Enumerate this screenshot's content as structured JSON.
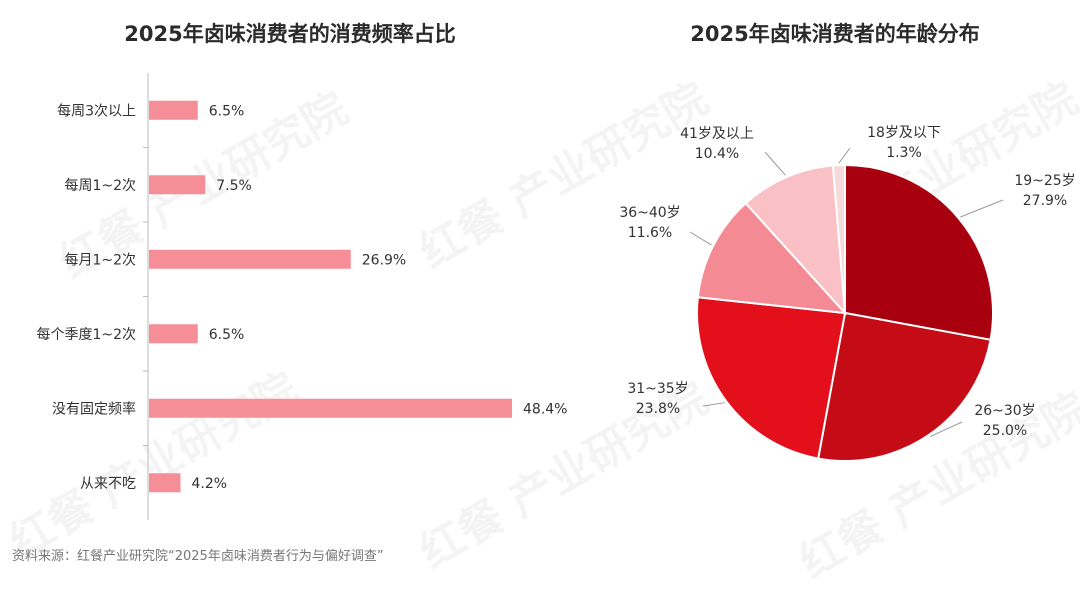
{
  "colors": {
    "bar": "#f58e97",
    "pie": [
      "#a8000e",
      "#c50b16",
      "#e3101c",
      "#f48b94",
      "#f9c1c6",
      "#f6d9db"
    ],
    "axis": "#bbbbbb",
    "leader": "#999999"
  },
  "source": "资料来源：红餐产业研究院“2025年卤味消费者行为与偏好调查”",
  "watermark": "红餐 产业研究院",
  "chart_data": [
    {
      "type": "bar",
      "orientation": "horizontal",
      "title": "2025年卤味消费者的消费频率占比",
      "categories": [
        "每周3次以上",
        "每周1~2次",
        "每月1~2次",
        "每个季度1~2次",
        "没有固定频率",
        "从来不吃"
      ],
      "values": [
        6.5,
        7.5,
        26.9,
        6.5,
        48.4,
        4.2
      ],
      "value_labels": [
        "6.5%",
        "7.5%",
        "26.9%",
        "6.5%",
        "48.4%",
        "4.2%"
      ],
      "unit": "%",
      "xlim": [
        0,
        50
      ],
      "grid": false
    },
    {
      "type": "pie",
      "title": "2025年卤味消费者的年龄分布",
      "labels": [
        "19~25岁",
        "26~30岁",
        "31~35岁",
        "36~40岁",
        "41岁及以上",
        "18岁及以下"
      ],
      "values": [
        27.9,
        25.0,
        23.8,
        11.6,
        10.4,
        1.3
      ],
      "value_labels": [
        "27.9%",
        "25.0%",
        "23.8%",
        "11.6%",
        "10.4%",
        "1.3%"
      ],
      "unit": "%"
    }
  ]
}
